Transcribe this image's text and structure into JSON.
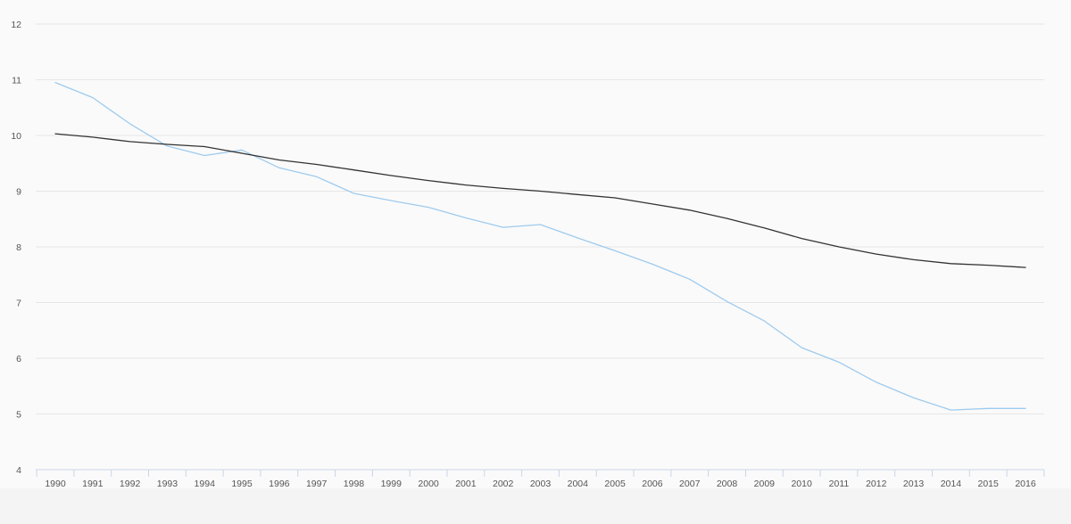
{
  "chart_data": {
    "type": "line",
    "title": "",
    "xlabel": "",
    "ylabel": "",
    "grid": true,
    "legend": "none",
    "ylim": [
      4,
      12
    ],
    "yticks": [
      4,
      5,
      6,
      7,
      8,
      9,
      10,
      11,
      12
    ],
    "x": [
      "1990",
      "1991",
      "1992",
      "1993",
      "1994",
      "1995",
      "1996",
      "1997",
      "1998",
      "1999",
      "2000",
      "2001",
      "2002",
      "2003",
      "2004",
      "2005",
      "2006",
      "2007",
      "2008",
      "2009",
      "2010",
      "2011",
      "2012",
      "2013",
      "2014",
      "2015",
      "2016"
    ],
    "series": [
      {
        "color": "#9ecbee",
        "values": [
          10.95,
          10.68,
          10.21,
          9.81,
          9.64,
          9.74,
          9.42,
          9.26,
          8.96,
          8.83,
          8.71,
          8.52,
          8.35,
          8.4,
          8.16,
          7.93,
          7.69,
          7.42,
          7.02,
          6.67,
          6.19,
          5.93,
          5.57,
          5.29,
          5.07,
          5.1,
          5.1
        ]
      },
      {
        "color": "#333333",
        "values": [
          10.03,
          9.97,
          9.89,
          9.84,
          9.8,
          9.68,
          9.56,
          9.48,
          9.38,
          9.28,
          9.19,
          9.11,
          9.05,
          9.0,
          8.94,
          8.88,
          8.77,
          8.66,
          8.51,
          8.34,
          8.15,
          8.0,
          7.87,
          7.77,
          7.7,
          7.67,
          7.63
        ]
      }
    ]
  }
}
